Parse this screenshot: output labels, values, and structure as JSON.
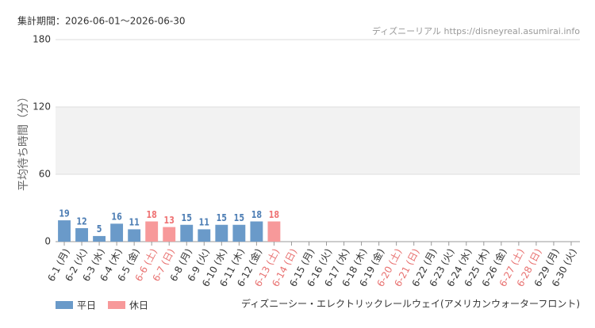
{
  "chart_data": {
    "type": "bar",
    "period": "集計期間：2026-06-01～2026-06-30",
    "source": "ディズニーリアル https://disneyreal.asumirai.info",
    "y_label": "平均待ち時間（分）",
    "attraction": "ディズニーシー・エレクトリックレールウェイ(アメリカンウォーターフロント)",
    "categories": [
      "6-1 (月)",
      "6-2 (火)",
      "6-3 (水)",
      "6-4 (木)",
      "6-5 (金)",
      "6-6 (土)",
      "6-7 (日)",
      "6-8 (月)",
      "6-9 (火)",
      "6-10 (水)",
      "6-11 (木)",
      "6-12 (金)",
      "6-13 (土)",
      "6-14 (日)",
      "6-15 (月)",
      "6-16 (火)",
      "6-17 (水)",
      "6-18 (木)",
      "6-19 (金)",
      "6-20 (土)",
      "6-21 (日)",
      "6-22 (月)",
      "6-23 (火)",
      "6-24 (水)",
      "6-25 (木)",
      "6-26 (金)",
      "6-27 (土)",
      "6-28 (日)",
      "6-29 (月)",
      "6-30 (火)"
    ],
    "category_colors": [
      "#333",
      "#333",
      "#333",
      "#333",
      "#333",
      "#e8706f",
      "#e8706f",
      "#333",
      "#333",
      "#333",
      "#333",
      "#333",
      "#e8706f",
      "#e8706f",
      "#333",
      "#333",
      "#333",
      "#333",
      "#333",
      "#e8706f",
      "#e8706f",
      "#333",
      "#333",
      "#333",
      "#333",
      "#333",
      "#e8706f",
      "#e8706f",
      "#333",
      "#333"
    ],
    "series": [
      {
        "name": "平日",
        "color": "#6a9ac9",
        "label_color": "#4f7fb5",
        "values": [
          19,
          12,
          5,
          16,
          11,
          null,
          null,
          15,
          11,
          15,
          15,
          18,
          null,
          null,
          null,
          null,
          null,
          null,
          null,
          null,
          null,
          null,
          null,
          null,
          null,
          null,
          null,
          null,
          null,
          null
        ]
      },
      {
        "name": "休日",
        "color": "#f7999a",
        "label_color": "#ef7475",
        "values": [
          null,
          null,
          null,
          null,
          null,
          18,
          13,
          null,
          null,
          null,
          null,
          null,
          18,
          null,
          null,
          null,
          null,
          null,
          null,
          null,
          null,
          null,
          null,
          null,
          null,
          null,
          null,
          null,
          null,
          null
        ]
      }
    ],
    "ylim": [
      0,
      180
    ],
    "yticks": [
      0,
      60,
      120,
      180
    ],
    "band": [
      60,
      120
    ],
    "grid": true
  }
}
